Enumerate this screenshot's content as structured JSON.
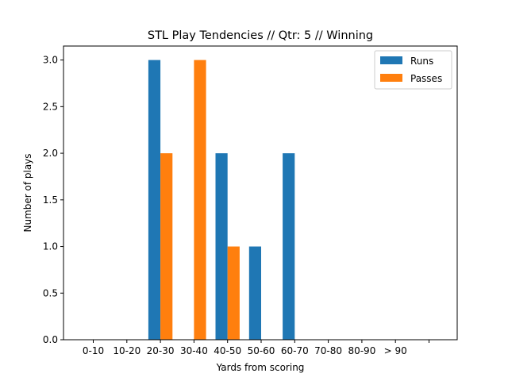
{
  "chart_data": {
    "type": "bar",
    "title": "STL Play Tendencies // Qtr: 5 // Winning",
    "xlabel": "Yards from scoring",
    "ylabel": "Number of plays",
    "categories": [
      "0-10",
      "10-20",
      "20-30",
      "30-40",
      "40-50",
      "50-60",
      "60-70",
      "70-80",
      "80-90",
      "> 90",
      ""
    ],
    "series": [
      {
        "name": "Runs",
        "color": "#1f77b4",
        "values": [
          0,
          0,
          3,
          0,
          2,
          1,
          2,
          0,
          0,
          0,
          0
        ]
      },
      {
        "name": "Passes",
        "color": "#ff7f0e",
        "values": [
          0,
          0,
          2,
          3,
          1,
          0,
          0,
          0,
          0,
          0,
          0
        ]
      }
    ],
    "ylim": [
      0,
      3.15
    ],
    "yticks": [
      "0.0",
      "0.5",
      "1.0",
      "1.5",
      "2.0",
      "2.5",
      "3.0"
    ],
    "grid": false,
    "legend": "upper right"
  }
}
